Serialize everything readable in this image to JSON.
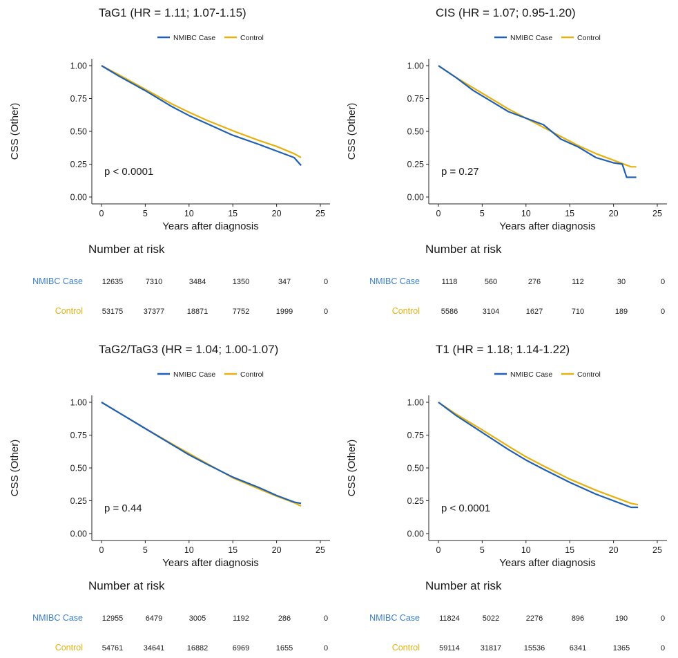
{
  "colors": {
    "case": "#1f5fb4",
    "control": "#e6b10f",
    "case_label": "#3a7fd0"
  },
  "chart_data": [
    {
      "type": "line",
      "title": "TaG1 (HR = 1.11; 1.07-1.15)",
      "xlabel": "Years after diagnosis",
      "ylabel": "CSS (Other)",
      "xlim": [
        0,
        25
      ],
      "ylim": [
        0,
        1
      ],
      "xticks": [
        "0",
        "5",
        "10",
        "15",
        "20",
        "25"
      ],
      "yticks": [
        "0.00",
        "0.25",
        "0.50",
        "0.75",
        "1.00"
      ],
      "legend": "top-center",
      "pvalue": "p < 0.0001",
      "series": [
        {
          "name": "NMIBC Case",
          "x": [
            0,
            2,
            5,
            8,
            10,
            12,
            15,
            18,
            20,
            22,
            22.8
          ],
          "y": [
            1.0,
            0.92,
            0.81,
            0.69,
            0.62,
            0.56,
            0.47,
            0.4,
            0.35,
            0.3,
            0.24
          ]
        },
        {
          "name": "Control",
          "x": [
            0,
            2,
            5,
            8,
            10,
            12,
            15,
            18,
            20,
            22,
            22.8
          ],
          "y": [
            1.0,
            0.93,
            0.82,
            0.71,
            0.645,
            0.585,
            0.505,
            0.43,
            0.385,
            0.33,
            0.3
          ]
        }
      ],
      "risk_title": "Number at risk",
      "risk_table": [
        {
          "name": "NMIBC Case",
          "values": [
            "12635",
            "7310",
            "3484",
            "1350",
            "347",
            "0"
          ]
        },
        {
          "name": "Control",
          "values": [
            "53175",
            "37377",
            "18871",
            "7752",
            "1999",
            "0"
          ]
        }
      ]
    },
    {
      "type": "line",
      "title": "CIS (HR = 1.07; 0.95-1.20)",
      "xlabel": "Years after diagnosis",
      "ylabel": "CSS (Other)",
      "xlim": [
        0,
        25
      ],
      "ylim": [
        0,
        1
      ],
      "xticks": [
        "0",
        "5",
        "10",
        "15",
        "20",
        "25"
      ],
      "yticks": [
        "0.00",
        "0.25",
        "0.50",
        "0.75",
        "1.00"
      ],
      "legend": "top-center",
      "pvalue": "p = 0.27",
      "series": [
        {
          "name": "NMIBC Case",
          "x": [
            0,
            2,
            4,
            6,
            8,
            10,
            12,
            14,
            16,
            18,
            20,
            21,
            21.5,
            22.6
          ],
          "y": [
            1.0,
            0.91,
            0.81,
            0.73,
            0.65,
            0.6,
            0.55,
            0.44,
            0.38,
            0.3,
            0.26,
            0.25,
            0.15,
            0.15
          ]
        },
        {
          "name": "Control",
          "x": [
            0,
            2,
            4,
            6,
            8,
            10,
            12,
            14,
            16,
            18,
            20,
            22,
            22.6
          ],
          "y": [
            1.0,
            0.91,
            0.83,
            0.75,
            0.67,
            0.6,
            0.53,
            0.46,
            0.39,
            0.33,
            0.28,
            0.23,
            0.23
          ]
        }
      ],
      "risk_title": "Number at risk",
      "risk_table": [
        {
          "name": "NMIBC Case",
          "values": [
            "1118",
            "560",
            "276",
            "112",
            "30",
            "0"
          ]
        },
        {
          "name": "Control",
          "values": [
            "5586",
            "3104",
            "1627",
            "710",
            "189",
            "0"
          ]
        }
      ]
    },
    {
      "type": "line",
      "title": "TaG2/TaG3 (HR = 1.04; 1.00-1.07)",
      "xlabel": "Years after diagnosis",
      "ylabel": "CSS (Other)",
      "xlim": [
        0,
        25
      ],
      "ylim": [
        0,
        1
      ],
      "xticks": [
        "0",
        "5",
        "10",
        "15",
        "20",
        "25"
      ],
      "yticks": [
        "0.00",
        "0.25",
        "0.50",
        "0.75",
        "1.00"
      ],
      "legend": "top-center",
      "pvalue": "p = 0.44",
      "series": [
        {
          "name": "NMIBC Case",
          "x": [
            0,
            2,
            5,
            8,
            10,
            12,
            15,
            18,
            20,
            22,
            22.8
          ],
          "y": [
            1.0,
            0.92,
            0.8,
            0.68,
            0.6,
            0.53,
            0.43,
            0.35,
            0.29,
            0.24,
            0.23
          ]
        },
        {
          "name": "Control",
          "x": [
            0,
            2,
            5,
            8,
            10,
            12,
            15,
            18,
            20,
            22,
            22.8
          ],
          "y": [
            1.0,
            0.92,
            0.8,
            0.685,
            0.61,
            0.535,
            0.425,
            0.34,
            0.285,
            0.235,
            0.21
          ]
        }
      ],
      "risk_title": "Number at risk",
      "risk_table": [
        {
          "name": "NMIBC Case",
          "values": [
            "12955",
            "6479",
            "3005",
            "1192",
            "286",
            "0"
          ]
        },
        {
          "name": "Control",
          "values": [
            "54761",
            "34641",
            "16882",
            "6969",
            "1655",
            "0"
          ]
        }
      ]
    },
    {
      "type": "line",
      "title": "T1 (HR = 1.18; 1.14-1.22)",
      "xlabel": "Years after diagnosis",
      "ylabel": "CSS (Other)",
      "xlim": [
        0,
        25
      ],
      "ylim": [
        0,
        1
      ],
      "xticks": [
        "0",
        "5",
        "10",
        "15",
        "20",
        "25"
      ],
      "yticks": [
        "0.00",
        "0.25",
        "0.50",
        "0.75",
        "1.00"
      ],
      "legend": "top-center",
      "pvalue": "p < 0.0001",
      "series": [
        {
          "name": "NMIBC Case",
          "x": [
            0,
            2,
            5,
            8,
            10,
            12,
            15,
            18,
            20,
            22,
            22.8
          ],
          "y": [
            1.0,
            0.9,
            0.77,
            0.64,
            0.56,
            0.49,
            0.39,
            0.3,
            0.25,
            0.2,
            0.2
          ]
        },
        {
          "name": "Control",
          "x": [
            0,
            2,
            5,
            8,
            10,
            12,
            15,
            18,
            20,
            22,
            22.8
          ],
          "y": [
            1.0,
            0.91,
            0.79,
            0.665,
            0.585,
            0.515,
            0.415,
            0.33,
            0.28,
            0.23,
            0.22
          ]
        }
      ],
      "risk_title": "Number at risk",
      "risk_table": [
        {
          "name": "NMIBC Case",
          "values": [
            "11824",
            "5022",
            "2276",
            "896",
            "190",
            "0"
          ]
        },
        {
          "name": "Control",
          "values": [
            "59114",
            "31817",
            "15536",
            "6341",
            "1365",
            "0"
          ]
        }
      ]
    }
  ]
}
